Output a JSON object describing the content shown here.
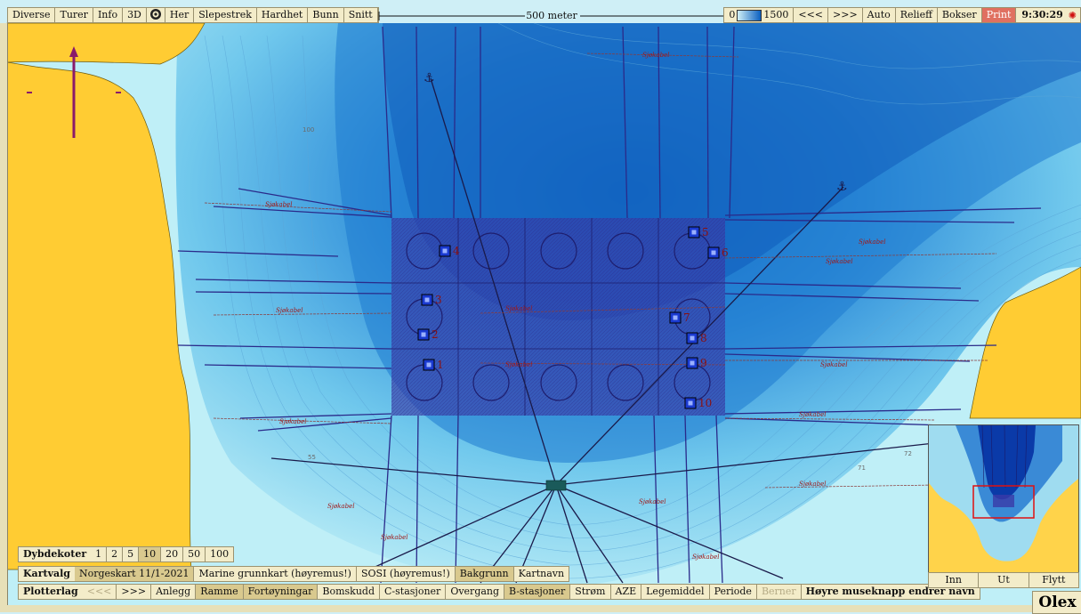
{
  "toolbar": {
    "items": [
      "Diverse",
      "Turer",
      "Info",
      "3D",
      "Her",
      "Slepestrek",
      "Hardhet",
      "Bunn",
      "Snitt"
    ],
    "scale_label": "500 meter",
    "depth_min": "0",
    "depth_max": "1500",
    "right_items": [
      "<<<",
      ">>>",
      "Auto",
      "Relieff",
      "Bokser",
      "Print"
    ],
    "clock": "9:30:29"
  },
  "map": {
    "cable_label": "Sjøkabel",
    "depth_labels": [
      "100",
      "55",
      "71",
      "72",
      "48"
    ],
    "stations": [
      "1",
      "2",
      "3",
      "4",
      "5",
      "6",
      "7",
      "8",
      "9",
      "10"
    ],
    "colors": {
      "land": "#ffcc33",
      "shallow": "#bfeff7",
      "deep": "#0e66c6",
      "grid": "#3a3aa8",
      "line": "#2a2a8a"
    }
  },
  "dybdekoter": {
    "label": "Dybdekoter",
    "values": [
      "1",
      "2",
      "5",
      "10",
      "20",
      "50",
      "100"
    ],
    "selected": "10"
  },
  "kartvalg": {
    "label": "Kartvalg",
    "items": [
      "Norgeskart 11/1-2021",
      "Marine grunnkart (høyremus!)",
      "SOSI (høyremus!)",
      "Bakgrunn",
      "Kartnavn"
    ],
    "active": [
      "Norgeskart 11/1-2021",
      "Bakgrunn"
    ]
  },
  "plotterlag": {
    "label": "Plotterlag",
    "prev": "<<<",
    "next": ">>>",
    "items": [
      "Anlegg",
      "Ramme",
      "Fortøyningar",
      "Bomskudd",
      "C-stasjoner",
      "Overgang",
      "B-stasjoner",
      "Strøm",
      "AZE",
      "Legemiddel",
      "Periode",
      "Berner"
    ],
    "active": [
      "Ramme",
      "Fortøyningar",
      "B-stasjoner"
    ],
    "disabled": [
      "Berner"
    ],
    "hint": "Høyre museknapp endrer navn"
  },
  "inset": {
    "buttons": [
      "Inn",
      "Ut",
      "Flytt"
    ]
  },
  "brand": "Olex"
}
